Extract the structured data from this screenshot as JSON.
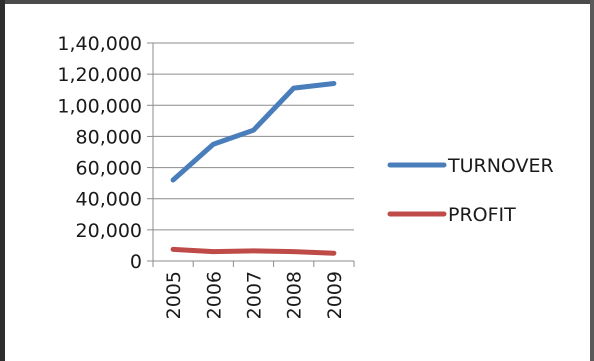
{
  "chart_data": {
    "type": "line",
    "categories": [
      "2005",
      "2006",
      "2007",
      "2008",
      "2009"
    ],
    "series": [
      {
        "name": "TURNOVER",
        "color": "#4a7ebb",
        "values": [
          52000,
          75000,
          84000,
          111000,
          114000
        ]
      },
      {
        "name": "PROFIT",
        "color": "#be4b48",
        "values": [
          7500,
          6000,
          6500,
          6000,
          5000
        ]
      }
    ],
    "y_ticks": [
      "0",
      "20,000",
      "40,000",
      "60,000",
      "80,000",
      "1,00,000",
      "1,20,000",
      "1,40,000"
    ],
    "ylim": [
      0,
      140000
    ],
    "grid": true,
    "legend_position": "right"
  }
}
